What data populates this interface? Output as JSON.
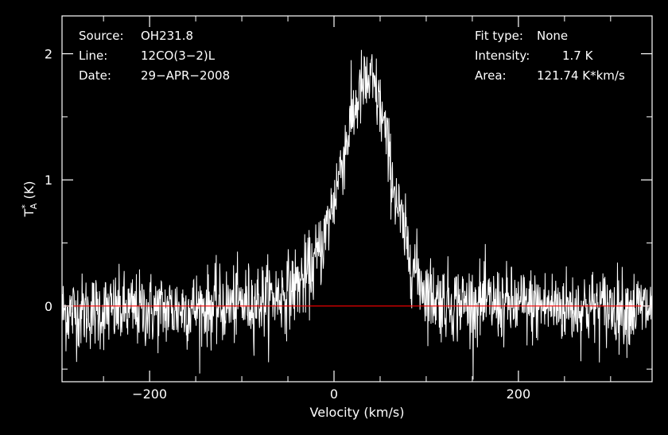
{
  "header": {
    "left": [
      {
        "label": "Source:",
        "value": "OH231.8"
      },
      {
        "label": "Line:",
        "value": "12CO(3−2)L"
      },
      {
        "label": "Date:",
        "value": "29−APR−2008"
      }
    ],
    "right": [
      {
        "label": "Fit type:",
        "value": "None"
      },
      {
        "label": "Intensity:",
        "value": "1.7 K"
      },
      {
        "label": "Area:",
        "value": "121.74 K*km/s"
      }
    ]
  },
  "chart_data": {
    "type": "line",
    "xlabel": "Velocity (km/s)",
    "ylabel_main": "T",
    "ylabel_sup": "*",
    "ylabel_sub": "A",
    "ylabel_unit": " (K)",
    "xlim": [
      -295,
      345
    ],
    "ylim": [
      -0.6,
      2.3
    ],
    "xticks": [
      -200,
      0,
      200
    ],
    "xtick_labels": [
      "−200",
      "0",
      "200"
    ],
    "yticks": [
      0,
      1,
      2
    ],
    "ytick_labels": [
      "0",
      "1",
      "2"
    ],
    "baseline": 0,
    "series": [
      {
        "color": "#ffffff",
        "x": [
          -295,
          -280,
          -260,
          -240,
          -220,
          -200,
          -180,
          -160,
          -140,
          -120,
          -100,
          -80,
          -60,
          -50,
          -40,
          -30,
          -20,
          -10,
          0,
          10,
          20,
          25,
          30,
          35,
          40,
          45,
          50,
          55,
          60,
          70,
          80,
          90,
          100,
          110,
          120,
          140,
          160,
          180,
          200,
          220,
          240,
          260,
          280,
          300,
          320,
          345
        ],
        "values": [
          -0.05,
          -0.05,
          -0.04,
          -0.04,
          -0.04,
          -0.03,
          -0.03,
          -0.02,
          -0.01,
          0.0,
          0.02,
          0.05,
          0.08,
          0.12,
          0.17,
          0.23,
          0.35,
          0.55,
          0.85,
          1.2,
          1.5,
          1.62,
          1.72,
          1.75,
          1.78,
          1.7,
          1.58,
          1.4,
          1.15,
          0.75,
          0.45,
          0.25,
          0.12,
          0.06,
          0.04,
          0.02,
          0.02,
          0.01,
          0.0,
          0.0,
          0.0,
          -0.01,
          -0.01,
          -0.01,
          -0.02,
          -0.02
        ]
      }
    ],
    "noise_rms": 0.15,
    "baseline_color": "#ff0000",
    "frame_color": "#ffffff",
    "background": "#000000",
    "grid": false
  }
}
